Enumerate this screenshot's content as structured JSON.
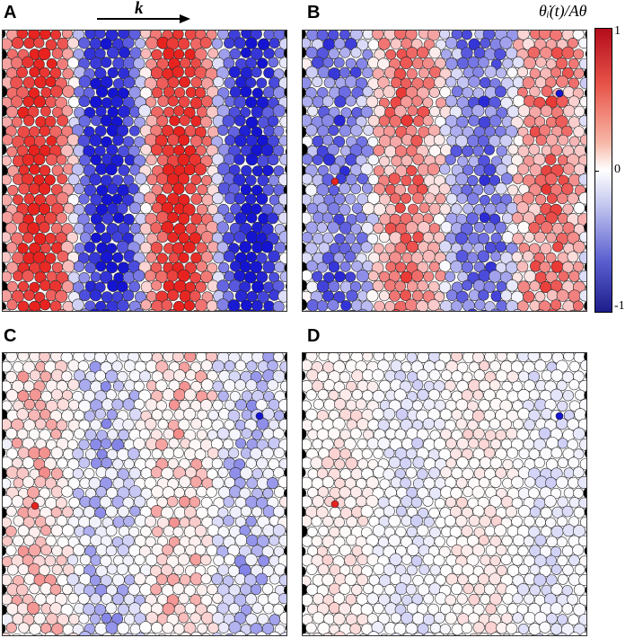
{
  "panels": [
    {
      "id": "A",
      "label": "A",
      "stripes": [
        1,
        -1,
        1,
        -1
      ],
      "amplitude": 1.0,
      "noise": 0.15,
      "seed": 11
    },
    {
      "id": "B",
      "label": "B",
      "stripes": [
        -1,
        1,
        -1,
        1
      ],
      "amplitude": 0.6,
      "noise": 0.45,
      "seed": 23
    },
    {
      "id": "C",
      "label": "C",
      "stripes": [
        1,
        -1,
        1,
        -1
      ],
      "amplitude": 0.35,
      "noise": 0.45,
      "seed": 37
    },
    {
      "id": "D",
      "label": "D",
      "stripes": [
        1,
        -1,
        1,
        -1
      ],
      "amplitude": 0.15,
      "noise": 0.4,
      "seed": 53
    }
  ],
  "wave_vector": {
    "label": "k"
  },
  "colorbar": {
    "title": "θ̇ᵢ(t)/Aθ",
    "ticks": {
      "top": "1",
      "mid": "0",
      "bottom": "-1"
    },
    "colors": {
      "positive": "#e8231f",
      "zero": "#ffffff",
      "negative": "#1414d2"
    }
  }
}
